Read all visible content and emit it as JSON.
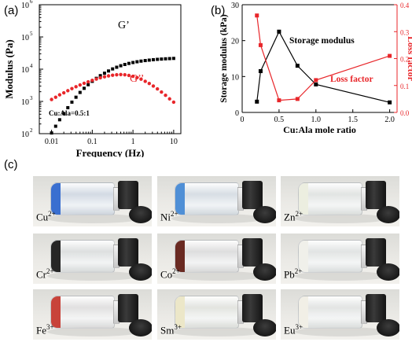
{
  "panels": {
    "a_label": "(a)",
    "b_label": "(b)",
    "c_label": "(c)"
  },
  "chart_data": [
    {
      "id": "a",
      "type": "scatter",
      "xlabel": "Frequency (Hz)",
      "ylabel": "Modulus (Pa)",
      "xscale": "log",
      "yscale": "log",
      "xlim": [
        0.005,
        15
      ],
      "ylim": [
        100,
        1000000
      ],
      "xticks": [
        0.01,
        0.1,
        1,
        10
      ],
      "xtick_labels": [
        "0.01",
        "0.1",
        "1",
        "10"
      ],
      "yticks": [
        100,
        1000,
        10000,
        100000,
        1000000
      ],
      "ytick_labels": [
        "10",
        "10",
        "10",
        "10",
        "10"
      ],
      "ytick_exponents": [
        "2",
        "3",
        "4",
        "5",
        "6"
      ],
      "annotation": "Cu:Ala=0.5:1",
      "series": [
        {
          "name": "G'",
          "color": "#000000",
          "marker": "square",
          "x": [
            0.01,
            0.0126,
            0.0158,
            0.02,
            0.0251,
            0.0316,
            0.0398,
            0.0501,
            0.0631,
            0.0794,
            0.1,
            0.126,
            0.158,
            0.2,
            0.251,
            0.316,
            0.398,
            0.501,
            0.631,
            0.794,
            1,
            1.26,
            1.58,
            2,
            2.51,
            3.16,
            3.98,
            5.01,
            6.31,
            7.94,
            10
          ],
          "y": [
            105,
            170,
            270,
            420,
            640,
            950,
            1350,
            1900,
            2550,
            3300,
            4200,
            5200,
            6300,
            7500,
            8800,
            10200,
            11500,
            12800,
            14000,
            15100,
            16100,
            17000,
            17800,
            18500,
            19100,
            19700,
            20200,
            20600,
            21000,
            21300,
            21600
          ]
        },
        {
          "name": "G''",
          "color": "#e8262a",
          "marker": "circle",
          "x": [
            0.01,
            0.0126,
            0.0158,
            0.02,
            0.0251,
            0.0316,
            0.0398,
            0.0501,
            0.0631,
            0.0794,
            0.1,
            0.126,
            0.158,
            0.2,
            0.251,
            0.316,
            0.398,
            0.501,
            0.631,
            0.794,
            1,
            1.26,
            1.58,
            2,
            2.51,
            3.16,
            3.98,
            5.01,
            6.31,
            7.94,
            10
          ],
          "y": [
            1150,
            1350,
            1600,
            1850,
            2150,
            2500,
            2850,
            3250,
            3650,
            4050,
            4500,
            4950,
            5400,
            5800,
            6200,
            6500,
            6700,
            6800,
            6700,
            6400,
            6000,
            5500,
            4900,
            4200,
            3600,
            3000,
            2450,
            1950,
            1550,
            1200,
            950
          ]
        }
      ],
      "labels": {
        "gp": "G’",
        "gpp": "G’’"
      }
    },
    {
      "id": "b",
      "type": "line",
      "xlabel": "Cu:Ala mole ratio",
      "ylabel": "Storage modulus (kPa)",
      "y2label": "Loss factor",
      "xlim": [
        0,
        2.1
      ],
      "xticks": [
        0,
        0.5,
        1.0,
        1.5,
        2.0
      ],
      "xtick_labels": [
        "0",
        "0.5",
        "1.0",
        "1.5",
        "2.0"
      ],
      "ylim": [
        0,
        30
      ],
      "yticks": [
        0,
        10,
        20,
        30
      ],
      "ytick_labels": [
        "0",
        "10",
        "20",
        "30"
      ],
      "y2lim": [
        0,
        0.4
      ],
      "y2ticks": [
        0,
        0.1,
        0.2,
        0.3,
        0.4
      ],
      "y2tick_labels": [
        "0.0",
        "0.1",
        "0.2",
        "0.3",
        "0.4"
      ],
      "series": [
        {
          "name": "Storage modulus",
          "color": "#000000",
          "axis": "left",
          "x": [
            0.2,
            0.25,
            0.5,
            0.75,
            1.0,
            2.0
          ],
          "y": [
            3,
            11.5,
            22.5,
            13,
            7.8,
            2.8
          ]
        },
        {
          "name": "Loss factor",
          "color": "#e8262a",
          "axis": "right",
          "x": [
            0.2,
            0.25,
            0.5,
            0.75,
            1.0,
            2.0
          ],
          "y": [
            0.36,
            0.25,
            0.045,
            0.05,
            0.12,
            0.21
          ]
        }
      ]
    }
  ],
  "vials": [
    {
      "ion": "Cu",
      "charge": "2+",
      "gel": "#3a6fd0",
      "tint": "rgba(110,150,230,0.25)"
    },
    {
      "ion": "Ni",
      "charge": "2+",
      "gel": "#4f8fd6",
      "tint": "rgba(130,175,230,0.22)"
    },
    {
      "ion": "Zn",
      "charge": "2+",
      "gel": "#eceee0",
      "tint": "rgba(240,240,225,0.3)"
    },
    {
      "ion": "Cr",
      "charge": "2+",
      "gel": "#262626",
      "tint": "rgba(200,200,200,0.25)"
    },
    {
      "ion": "Co",
      "charge": "2+",
      "gel": "#6a2a22",
      "tint": "rgba(200,170,170,0.2)"
    },
    {
      "ion": "Pb",
      "charge": "2+",
      "gel": "#f0f0ea",
      "tint": "rgba(235,235,230,0.3)"
    },
    {
      "ion": "Fe",
      "charge": "3+",
      "gel": "#c8433a",
      "tint": "rgba(230,200,200,0.22)"
    },
    {
      "ion": "Sm",
      "charge": "3+",
      "gel": "#ece7c8",
      "tint": "rgba(240,235,205,0.35)"
    },
    {
      "ion": "Eu",
      "charge": "3+",
      "gel": "#f1efe6",
      "tint": "rgba(240,238,228,0.35)"
    }
  ]
}
